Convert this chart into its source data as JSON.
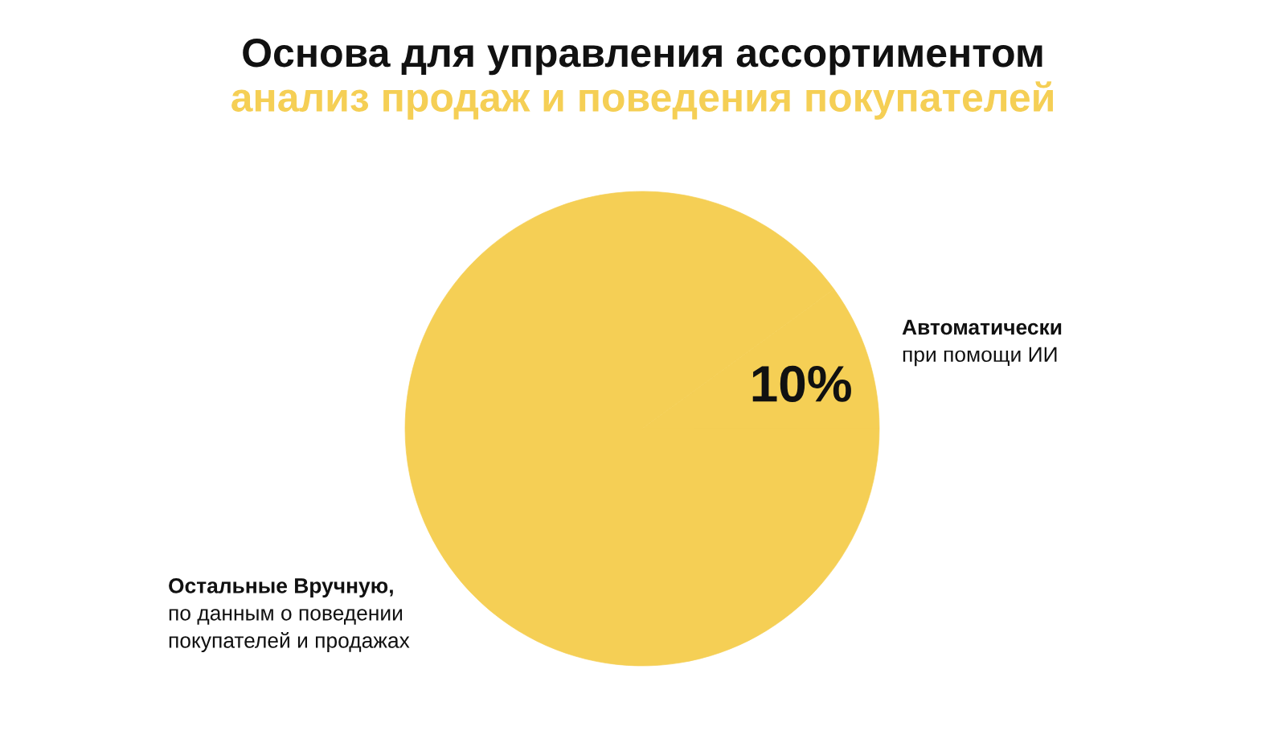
{
  "chart_data": {
    "type": "pie",
    "title": "Основа для управления ассортиментом",
    "subtitle": "анализ продаж и поведения покупателей",
    "categories": [
      "Автоматически\nпри помощи ИИ",
      "Остальные Вручную,\nпо данным о поведении\nпокупателей и продажах"
    ],
    "values": [
      10,
      90
    ],
    "colors": [
      "#f5cf55",
      "#f5cf55"
    ],
    "value_labels": [
      "10%",
      null
    ],
    "legend": false
  }
}
